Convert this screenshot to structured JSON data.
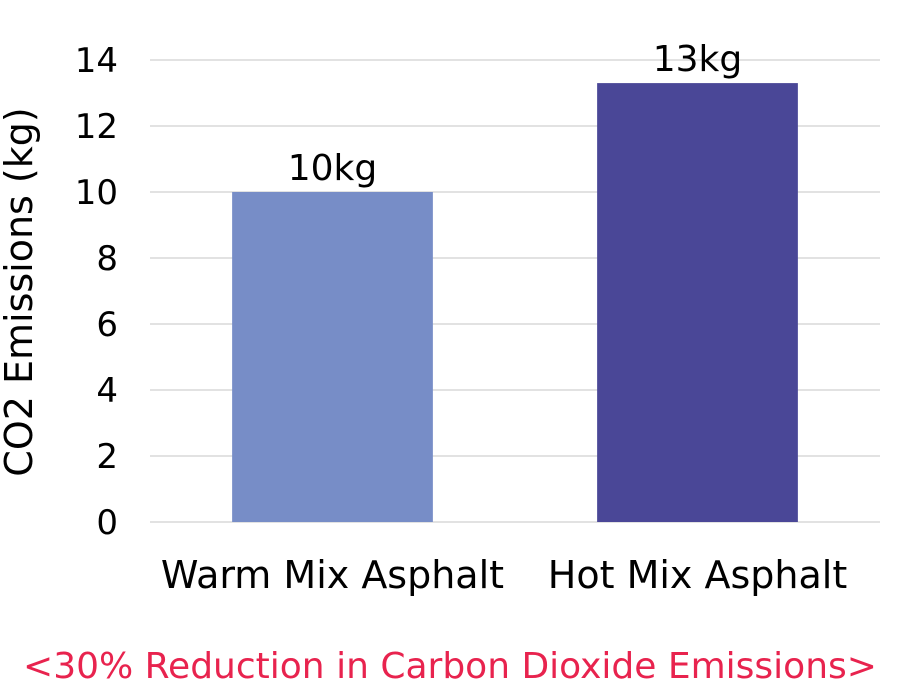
{
  "chart_data": {
    "type": "bar",
    "categories": [
      "Warm Mix Asphalt",
      "Hot Mix Asphalt"
    ],
    "values": [
      10,
      13.3
    ],
    "data_labels": [
      "10kg",
      "13kg"
    ],
    "bar_colors": [
      "#778dc7",
      "#4a4797"
    ],
    "ylabel": "CO2 Emissions (kg)",
    "ylim": [
      0,
      14
    ],
    "yticks": [
      0,
      2,
      4,
      6,
      8,
      10,
      12,
      14
    ],
    "grid": true,
    "legend": "none"
  },
  "caption": {
    "text": "<30% Reduction in Carbon Dioxide Emissions>",
    "color": "#e8234e"
  },
  "colors": {
    "grid": "#d9d9d9",
    "text": "#000000"
  }
}
